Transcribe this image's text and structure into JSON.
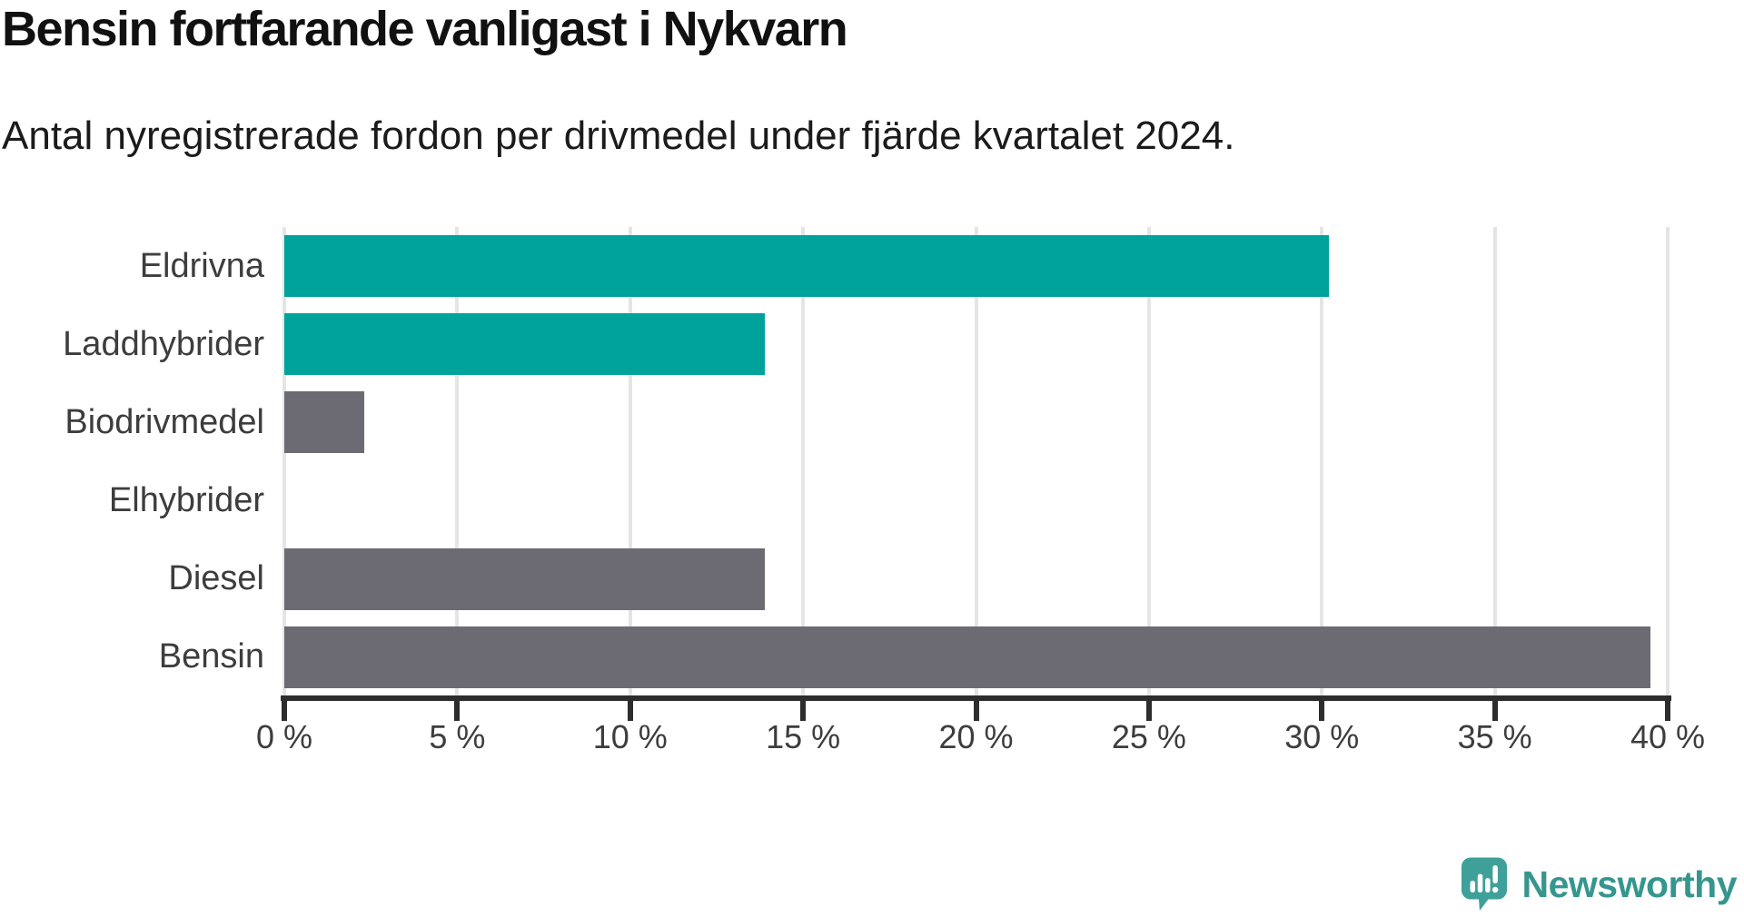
{
  "header": {
    "title": "Bensin fortfarande vanligast i Nykvarn",
    "subtitle": "Antal nyregistrerade fordon per drivmedel under fjärde kvartalet 2024."
  },
  "chart_data": {
    "type": "bar",
    "orientation": "horizontal",
    "title": "Bensin fortfarande vanligast i Nykvarn",
    "subtitle": "Antal nyregistrerade fordon per drivmedel under fjärde kvartalet 2024.",
    "categories": [
      "Eldrivna",
      "Laddhybrider",
      "Biodrivmedel",
      "Elhybrider",
      "Diesel",
      "Bensin"
    ],
    "values": [
      30.2,
      13.9,
      2.3,
      0,
      13.9,
      39.5
    ],
    "unit": "%",
    "xlim": [
      0,
      40
    ],
    "x_ticks": [
      0,
      5,
      10,
      15,
      20,
      25,
      30,
      35,
      40
    ],
    "x_tick_labels": [
      "0 %",
      "5 %",
      "10 %",
      "15 %",
      "20 %",
      "25 %",
      "30 %",
      "35 %",
      "40 %"
    ],
    "bar_colors": [
      "#00a39b",
      "#00a39b",
      "#6c6b73",
      "#6c6b73",
      "#6c6b73",
      "#6c6b73"
    ],
    "grid": "vertical",
    "legend": "none",
    "xlabel": "",
    "ylabel": ""
  },
  "footer": {
    "brand_name": "Newsworthy"
  },
  "colors": {
    "teal_bar": "#00a39b",
    "gray_bar": "#6c6b73",
    "gridline": "#e5e5e5",
    "axis": "#2d2d2d",
    "title_text": "#111111",
    "label_text": "#3d3d3d",
    "brand_text": "#36968e",
    "brand_icon": "#3fa099"
  }
}
